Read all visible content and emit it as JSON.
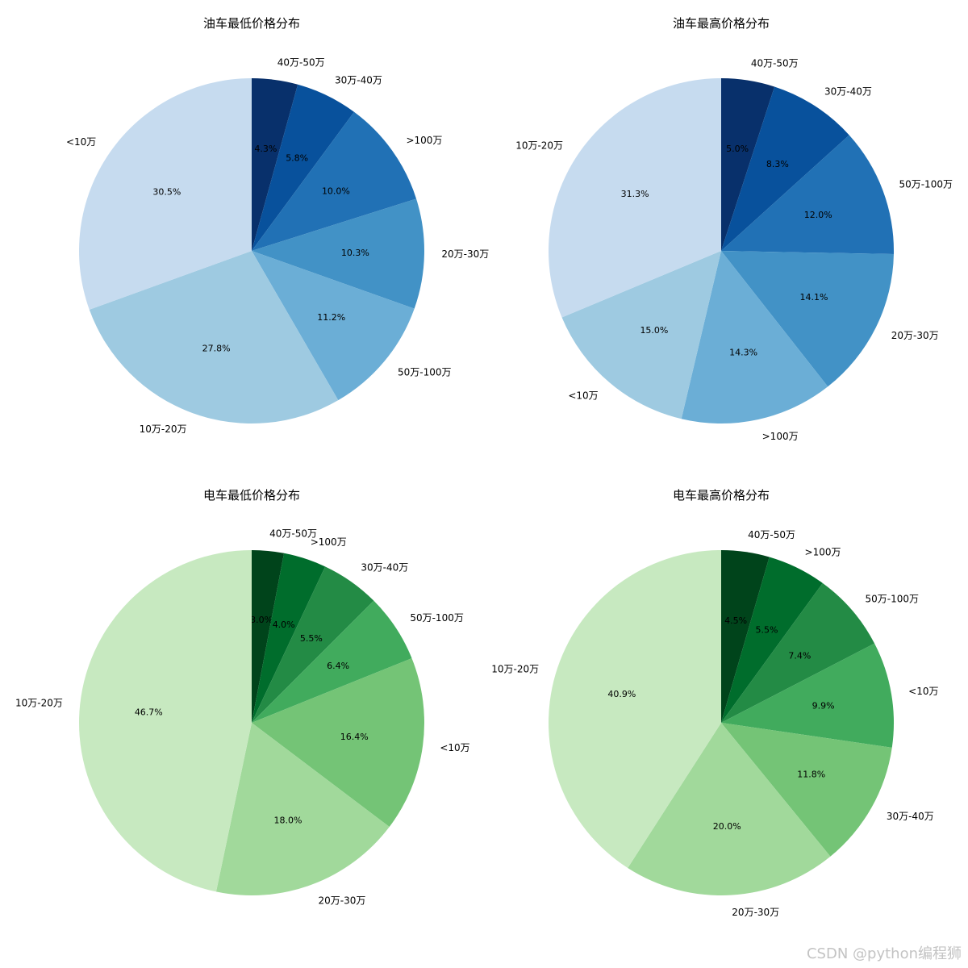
{
  "watermark": "CSDN @python编程狮",
  "chart_data": [
    {
      "type": "pie",
      "title": "油车最低价格分布",
      "categories": [
        "40万-50万",
        "30万-40万",
        ">100万",
        "20万-30万",
        "50万-100万",
        "10万-20万",
        "<10万"
      ],
      "values": [
        4.3,
        5.8,
        10.0,
        10.3,
        11.2,
        27.8,
        30.5
      ],
      "value_labels": [
        "4.3%",
        "5.8%",
        "10.0%",
        "10.3%",
        "11.2%",
        "27.8%",
        "30.5%"
      ],
      "colors": [
        "#08306b",
        "#08519c",
        "#2171b5",
        "#4292c6",
        "#6baed6",
        "#9ecae1",
        "#c6dbef"
      ],
      "start_angle": "top (90°)",
      "direction": "clockwise"
    },
    {
      "type": "pie",
      "title": "油车最高价格分布",
      "categories": [
        "40万-50万",
        "30万-40万",
        "50万-100万",
        "20万-30万",
        ">100万",
        "<10万",
        "10万-20万"
      ],
      "values": [
        5.0,
        8.3,
        12.0,
        14.1,
        14.3,
        15.0,
        31.3
      ],
      "value_labels": [
        "5.0%",
        "8.3%",
        "12.0%",
        "14.1%",
        "14.3%",
        "15.0%",
        "31.3%"
      ],
      "colors": [
        "#08306b",
        "#08519c",
        "#2171b5",
        "#4292c6",
        "#6baed6",
        "#9ecae1",
        "#c6dbef"
      ],
      "start_angle": "top (90°)",
      "direction": "clockwise"
    },
    {
      "type": "pie",
      "title": "电车最低价格分布",
      "categories": [
        "40万-50万",
        ">100万",
        "30万-40万",
        "50万-100万",
        "<10万",
        "20万-30万",
        "10万-20万"
      ],
      "values": [
        3.0,
        4.0,
        5.5,
        6.4,
        16.4,
        18.0,
        46.7
      ],
      "value_labels": [
        "3.0%",
        "4.0%",
        "5.5%",
        "6.4%",
        "16.4%",
        "18.0%",
        "46.7%"
      ],
      "colors": [
        "#00441b",
        "#006d2c",
        "#238b45",
        "#41ab5d",
        "#74c476",
        "#a1d99b",
        "#c7e9c0"
      ],
      "start_angle": "top (90°)",
      "direction": "clockwise"
    },
    {
      "type": "pie",
      "title": "电车最高价格分布",
      "categories": [
        "40万-50万",
        ">100万",
        "50万-100万",
        "<10万",
        "30万-40万",
        "20万-30万",
        "10万-20万"
      ],
      "values": [
        4.5,
        5.5,
        7.4,
        9.9,
        11.8,
        20.0,
        40.9
      ],
      "value_labels": [
        "4.5%",
        "5.5%",
        "7.4%",
        "9.9%",
        "11.8%",
        "20.0%",
        "40.9%"
      ],
      "colors": [
        "#00441b",
        "#006d2c",
        "#238b45",
        "#41ab5d",
        "#74c476",
        "#a1d99b",
        "#c7e9c0"
      ],
      "start_angle": "top (90°)",
      "direction": "clockwise"
    }
  ]
}
